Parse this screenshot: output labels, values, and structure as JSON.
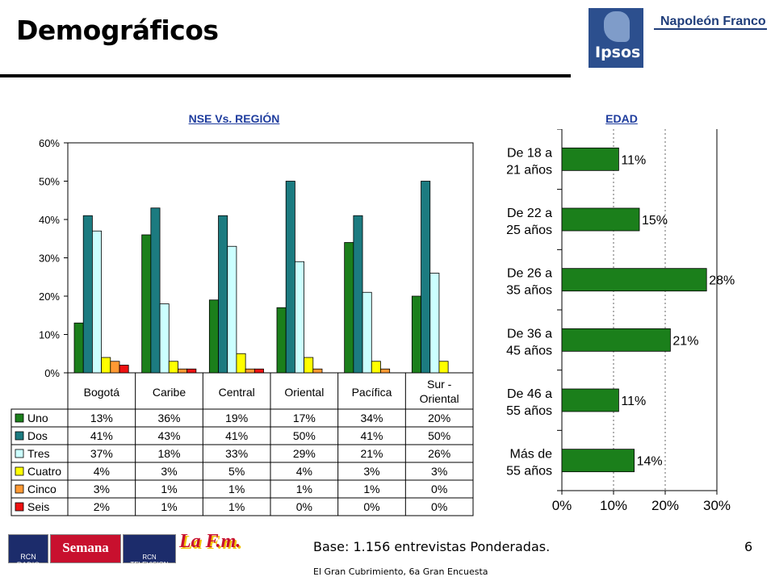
{
  "title": "Demográficos",
  "brand": {
    "logo_text": "Ipsos",
    "company": "Napoleón Franco"
  },
  "chart_data": [
    {
      "type": "bar",
      "title": "NSE Vs. REGIÓN",
      "categories": [
        "Bogotá",
        "Caribe",
        "Central",
        "Oriental",
        "Pacífica",
        "Sur - Oriental"
      ],
      "ylim": [
        0,
        60
      ],
      "yticks": [
        "0%",
        "10%",
        "20%",
        "30%",
        "40%",
        "50%",
        "60%"
      ],
      "series": [
        {
          "name": "Uno",
          "color": "#1b7f1b",
          "values": [
            13,
            36,
            19,
            17,
            34,
            20
          ],
          "labels": [
            "13%",
            "36%",
            "19%",
            "17%",
            "34%",
            "20%"
          ]
        },
        {
          "name": "Dos",
          "color": "#1c7b80",
          "values": [
            41,
            43,
            41,
            50,
            41,
            50
          ],
          "labels": [
            "41%",
            "43%",
            "41%",
            "50%",
            "41%",
            "50%"
          ]
        },
        {
          "name": "Tres",
          "color": "#ccffff",
          "values": [
            37,
            18,
            33,
            29,
            21,
            26
          ],
          "labels": [
            "37%",
            "18%",
            "33%",
            "29%",
            "21%",
            "26%"
          ]
        },
        {
          "name": "Cuatro",
          "color": "#ffff00",
          "values": [
            4,
            3,
            5,
            4,
            3,
            3
          ],
          "labels": [
            "4%",
            "3%",
            "5%",
            "4%",
            "3%",
            "3%"
          ]
        },
        {
          "name": "Cinco",
          "color": "#ff9933",
          "values": [
            3,
            1,
            1,
            1,
            1,
            0
          ],
          "labels": [
            "3%",
            "1%",
            "1%",
            "1%",
            "1%",
            "0%"
          ]
        },
        {
          "name": "Seis",
          "color": "#ee1111",
          "values": [
            2,
            1,
            1,
            0,
            0,
            0
          ],
          "labels": [
            "2%",
            "1%",
            "1%",
            "0%",
            "0%",
            "0%"
          ]
        }
      ]
    },
    {
      "type": "bar",
      "orientation": "horizontal",
      "title": "EDAD",
      "categories": [
        "De 18 a 21 años",
        "De 22 a 25 años",
        "De 26 a 35 años",
        "De 36 a 45 años",
        "De 46 a 55 años",
        "Más de 55 años"
      ],
      "category_lines": [
        [
          "De 18 a",
          "21 años"
        ],
        [
          "De 22 a",
          "25 años"
        ],
        [
          "De 26 a",
          "35 años"
        ],
        [
          "De 36 a",
          "45 años"
        ],
        [
          "De 46 a",
          "55 años"
        ],
        [
          "Más de",
          "55 años"
        ]
      ],
      "values": [
        11,
        15,
        28,
        21,
        11,
        14
      ],
      "labels": [
        "11%",
        "15%",
        "28%",
        "21%",
        "11%",
        "14%"
      ],
      "xlim": [
        0,
        30
      ],
      "xticks": [
        "0%",
        "10%",
        "20%",
        "30%"
      ],
      "color": "#1b7f1b"
    }
  ],
  "footer": {
    "base_note": "Base: 1.156 entrevistas Ponderadas.",
    "study": "El Gran Cubrimiento, 6a Gran Encuesta",
    "page": "6"
  },
  "media_logos": [
    "RCN RADIO",
    "Semana",
    "RCN TELEVISION",
    "La F.m."
  ]
}
